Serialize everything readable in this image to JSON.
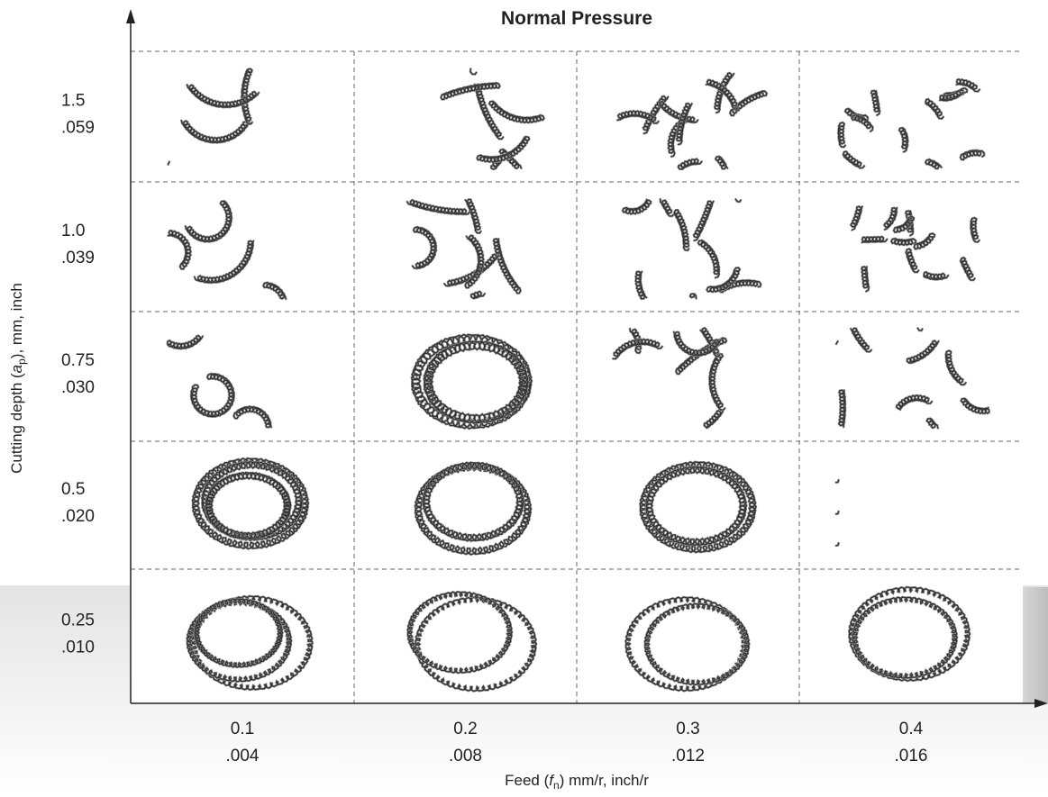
{
  "title": "Normal Pressure",
  "y_axis": {
    "parts": [
      "Cutting depth (",
      "a",
      "p",
      "), mm, inch"
    ]
  },
  "x_axis": {
    "parts": [
      "Feed (",
      "f",
      "n",
      ") mm/r, inch/r"
    ]
  },
  "rows": [
    [
      "1.5",
      ".059"
    ],
    [
      "1.0",
      ".039"
    ],
    [
      "0.75",
      ".030"
    ],
    [
      "0.5",
      ".020"
    ],
    [
      "0.25",
      ".010"
    ]
  ],
  "columns": [
    [
      "0.1",
      ".004"
    ],
    [
      "0.2",
      ".008"
    ],
    [
      "0.3",
      ".012"
    ],
    [
      "0.4",
      ".016"
    ]
  ]
}
